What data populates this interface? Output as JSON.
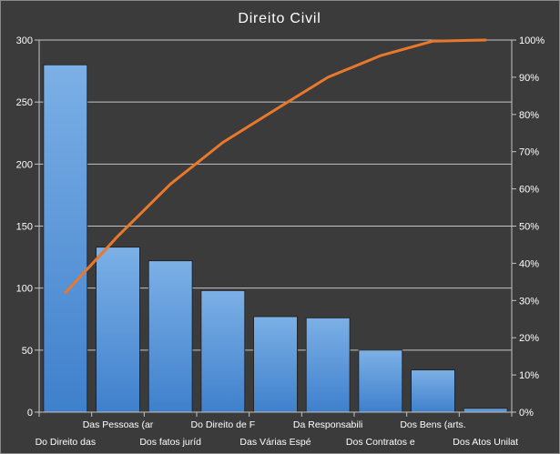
{
  "chart_data": {
    "type": "bar",
    "title": "Direito Civil",
    "xlabel": "",
    "ylabel": "",
    "categories": [
      "Do Direito das",
      "Das Pessoas (ar",
      "Dos fatos juríd",
      "Do Direito de F",
      "Das Várias Espé",
      "Da Responsabili",
      "Dos Contratos e",
      "Dos Bens (arts.",
      "Dos Atos Unilat"
    ],
    "series": [
      {
        "type": "bar",
        "axis": "left",
        "values": [
          280,
          133,
          122,
          98,
          77,
          76,
          50,
          34,
          3
        ]
      },
      {
        "type": "line",
        "axis": "right",
        "values": [
          32.1,
          47.3,
          61.3,
          72.5,
          81.3,
          90.0,
          95.8,
          99.7,
          100
        ]
      }
    ],
    "ylim": [
      0,
      300
    ],
    "y_ticks": [
      "0",
      "50",
      "100",
      "150",
      "200",
      "250",
      "300"
    ],
    "y2lim": [
      0,
      100
    ],
    "y2_ticks": [
      "0%",
      "10%",
      "20%",
      "30%",
      "40%",
      "50%",
      "60%",
      "70%",
      "80%",
      "90%",
      "100%"
    ],
    "grid": true,
    "legend": "none",
    "colors": {
      "background": "#3b3b3b",
      "frame": "#8a8a8a",
      "grid": "#c4c4c4",
      "axis": "#c4c4c4",
      "bar_top": "#7cb0e6",
      "bar_bottom": "#3f80cc",
      "bar_outline": "#1c1c1c",
      "line": "#e8792c",
      "text": "#ffffff"
    }
  }
}
